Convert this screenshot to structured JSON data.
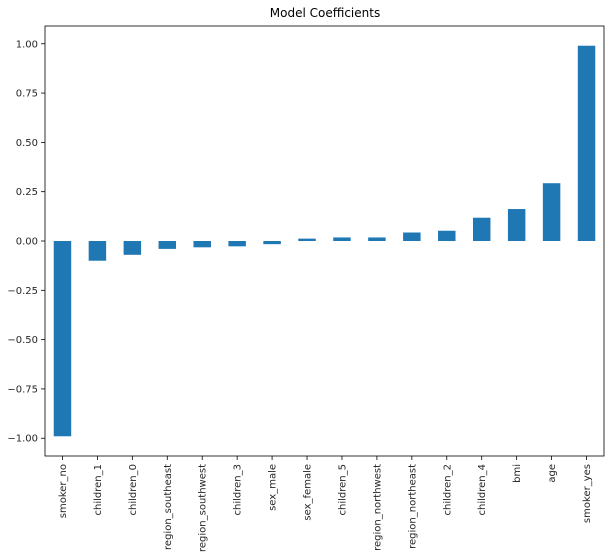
{
  "chart_data": {
    "type": "bar",
    "title": "Model Coefficients",
    "xlabel": "",
    "ylabel": "",
    "categories": [
      "smoker_no",
      "children_1",
      "children_0",
      "region_southeast",
      "region_southwest",
      "children_3",
      "sex_male",
      "sex_female",
      "children_5",
      "region_northwest",
      "region_northeast",
      "children_2",
      "children_4",
      "bmi",
      "age",
      "smoker_yes"
    ],
    "values": [
      -0.99,
      -0.1,
      -0.07,
      -0.04,
      -0.032,
      -0.027,
      -0.016,
      0.012,
      0.018,
      0.018,
      0.043,
      0.052,
      0.118,
      0.162,
      0.293,
      0.99
    ],
    "ylim": [
      -1.09,
      1.09
    ],
    "yticks": [
      -1.0,
      -0.75,
      -0.5,
      -0.25,
      0.0,
      0.25,
      0.5,
      0.75,
      1.0
    ],
    "ytick_labels": [
      "−1.00",
      "−0.75",
      "−0.50",
      "−0.25",
      "0.00",
      "0.25",
      "0.50",
      "0.75",
      "1.00"
    ],
    "bar_color": "#1f77b4",
    "grid": false,
    "legend": false
  }
}
